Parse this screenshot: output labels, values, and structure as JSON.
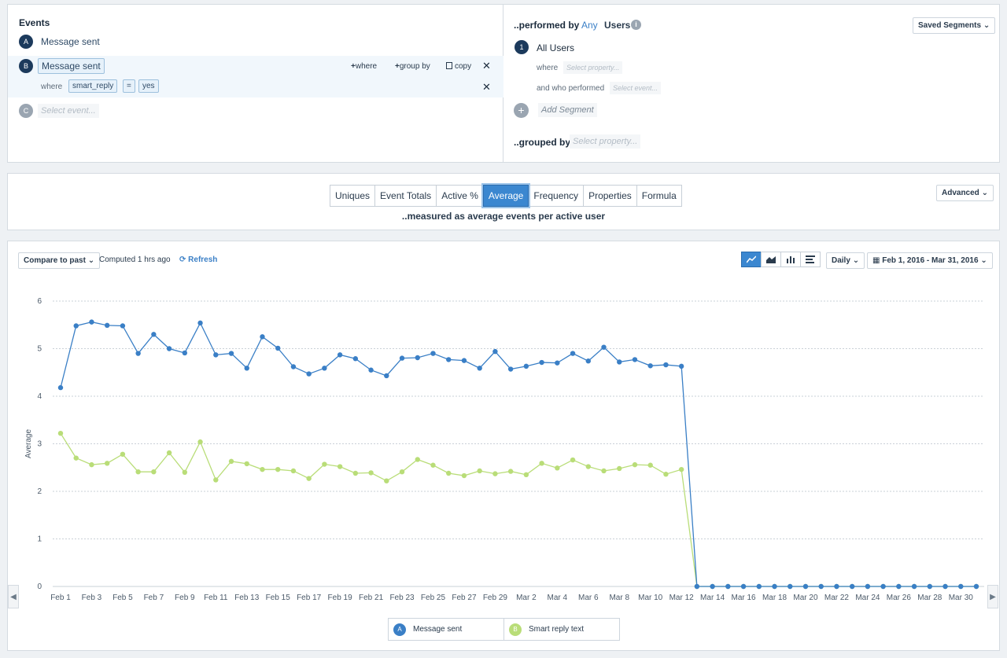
{
  "events": {
    "title": "Events",
    "items": [
      {
        "letter": "A",
        "name": "Message sent"
      },
      {
        "letter": "B",
        "name": "Message sent",
        "filter": {
          "where_label": "where",
          "property": "smart_reply",
          "operator": "=",
          "value": "yes"
        },
        "actions": {
          "where": "where",
          "group_by": "group by",
          "copy": "copy"
        }
      },
      {
        "letter": "C",
        "placeholder": "Select event..."
      }
    ]
  },
  "segments": {
    "performed_by_label": "..performed by",
    "any": "Any",
    "users": "Users",
    "saved_segments": "Saved Segments",
    "segment_number": "1",
    "segment_name": "All Users",
    "where_label": "where",
    "where_placeholder": "Select property...",
    "who_performed_label": "and who performed",
    "who_performed_placeholder": "Select event...",
    "add_segment": "Add Segment",
    "grouped_by_label": "..grouped by",
    "grouped_by_placeholder": "Select property..."
  },
  "metrics": {
    "tabs": [
      "Uniques",
      "Event Totals",
      "Active %",
      "Average",
      "Frequency",
      "Properties",
      "Formula"
    ],
    "active_tab": "Average",
    "advanced": "Advanced",
    "measured_text": "..measured as average events per active user"
  },
  "toolbar": {
    "compare": "Compare to past",
    "computed": "Computed 1 hrs ago",
    "refresh": "Refresh",
    "interval": "Daily",
    "date_range": "Feb 1, 2016 - Mar 31, 2016"
  },
  "colors": {
    "series_a": "#3a7fc6",
    "series_b": "#b9dd78",
    "accent": "#3b87d0"
  },
  "chart_data": {
    "type": "line",
    "ylabel": "Average",
    "ylim": [
      0,
      6
    ],
    "yticks": [
      0,
      1,
      2,
      3,
      4,
      5,
      6
    ],
    "grid": true,
    "legend_position": "bottom",
    "x": [
      "Feb 1",
      "Feb 2",
      "Feb 3",
      "Feb 4",
      "Feb 5",
      "Feb 6",
      "Feb 7",
      "Feb 8",
      "Feb 9",
      "Feb 10",
      "Feb 11",
      "Feb 12",
      "Feb 13",
      "Feb 14",
      "Feb 15",
      "Feb 16",
      "Feb 17",
      "Feb 18",
      "Feb 19",
      "Feb 20",
      "Feb 21",
      "Feb 22",
      "Feb 23",
      "Feb 24",
      "Feb 25",
      "Feb 26",
      "Feb 27",
      "Feb 28",
      "Feb 29",
      "Mar 1",
      "Mar 2",
      "Mar 3",
      "Mar 4",
      "Mar 5",
      "Mar 6",
      "Mar 7",
      "Mar 8",
      "Mar 9",
      "Mar 10",
      "Mar 11",
      "Mar 12",
      "Mar 13",
      "Mar 14",
      "Mar 15",
      "Mar 16",
      "Mar 17",
      "Mar 18",
      "Mar 19",
      "Mar 20",
      "Mar 21",
      "Mar 22",
      "Mar 23",
      "Mar 24",
      "Mar 25",
      "Mar 26",
      "Mar 27",
      "Mar 28",
      "Mar 29",
      "Mar 30",
      "Mar 31"
    ],
    "x_tick_labels": [
      "Feb 1",
      "Feb 3",
      "Feb 5",
      "Feb 7",
      "Feb 9",
      "Feb 11",
      "Feb 13",
      "Feb 15",
      "Feb 17",
      "Feb 19",
      "Feb 21",
      "Feb 23",
      "Feb 25",
      "Feb 27",
      "Feb 29",
      "Mar 2",
      "Mar 4",
      "Mar 6",
      "Mar 8",
      "Mar 10",
      "Mar 12",
      "Mar 14",
      "Mar 16",
      "Mar 18",
      "Mar 20",
      "Mar 22",
      "Mar 24",
      "Mar 26",
      "Mar 28",
      "Mar 30"
    ],
    "series": [
      {
        "letter": "A",
        "name": "Message sent",
        "color": "#3a7fc6",
        "values": [
          4.18,
          5.48,
          5.56,
          5.49,
          5.48,
          4.9,
          5.3,
          5.0,
          4.91,
          5.54,
          4.87,
          4.9,
          4.59,
          5.25,
          5.01,
          4.62,
          4.47,
          4.59,
          4.87,
          4.79,
          4.55,
          4.43,
          4.8,
          4.81,
          4.9,
          4.77,
          4.75,
          4.59,
          4.94,
          4.57,
          4.63,
          4.71,
          4.7,
          4.9,
          4.74,
          5.03,
          4.72,
          4.77,
          4.64,
          4.66,
          4.63,
          0,
          0,
          0,
          0,
          0,
          0,
          0,
          0,
          0,
          0,
          0,
          0,
          0,
          0,
          0,
          0,
          0,
          0,
          0
        ]
      },
      {
        "letter": "B",
        "name": "Smart reply text",
        "color": "#b9dd78",
        "values": [
          3.22,
          2.7,
          2.56,
          2.59,
          2.78,
          2.41,
          2.41,
          2.81,
          2.4,
          3.04,
          2.24,
          2.63,
          2.58,
          2.46,
          2.46,
          2.43,
          2.27,
          2.57,
          2.52,
          2.38,
          2.39,
          2.22,
          2.41,
          2.67,
          2.55,
          2.38,
          2.33,
          2.43,
          2.37,
          2.42,
          2.35,
          2.59,
          2.49,
          2.66,
          2.52,
          2.43,
          2.48,
          2.56,
          2.55,
          2.36,
          2.46,
          0,
          0,
          0,
          0,
          0,
          0,
          0,
          0,
          0,
          0,
          0,
          0,
          0,
          0,
          0,
          0,
          0,
          0,
          0
        ]
      }
    ]
  }
}
